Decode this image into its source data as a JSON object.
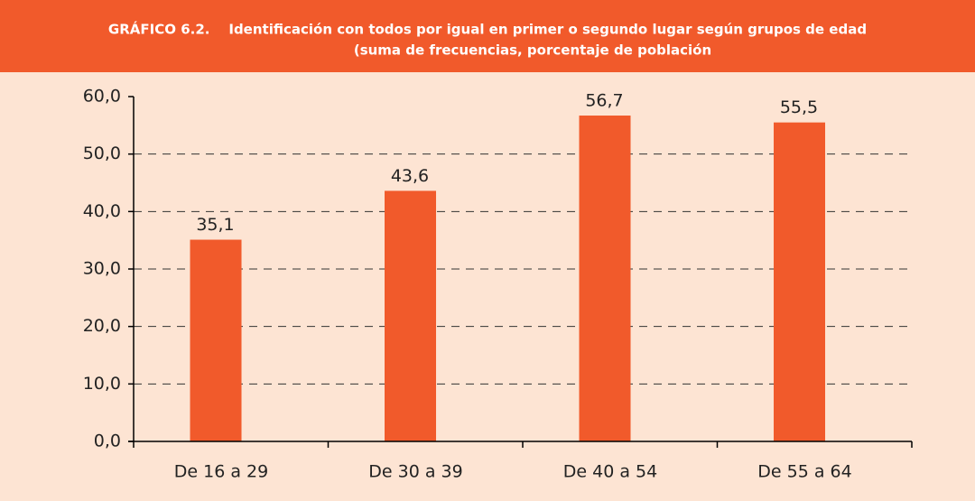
{
  "chart_data": {
    "type": "bar",
    "title": "GRÁFICO 6.2.    Identificación con todos por igual en primer o segundo lugar según grupos de edad",
    "subtitle": "(suma de frecuencias, porcentaje de población",
    "categories": [
      "De 16 a 29",
      "De 30 a 39",
      "De 40 a 54",
      "De 55 a 64"
    ],
    "values": [
      35.1,
      43.6,
      56.7,
      55.5
    ],
    "value_labels": [
      "35,1",
      "43,6",
      "56,7",
      "55,5"
    ],
    "color": "#f15a2b",
    "ylim": [
      0,
      60
    ],
    "yticks": [
      {
        "value": 0,
        "label": "0,0"
      },
      {
        "value": 10,
        "label": "10,0"
      },
      {
        "value": 20,
        "label": "20,0"
      },
      {
        "value": 30,
        "label": "30,0"
      },
      {
        "value": 40,
        "label": "40,0"
      },
      {
        "value": 50,
        "label": "50,0"
      },
      {
        "value": 60,
        "label": "60,0"
      }
    ],
    "grid": true
  }
}
